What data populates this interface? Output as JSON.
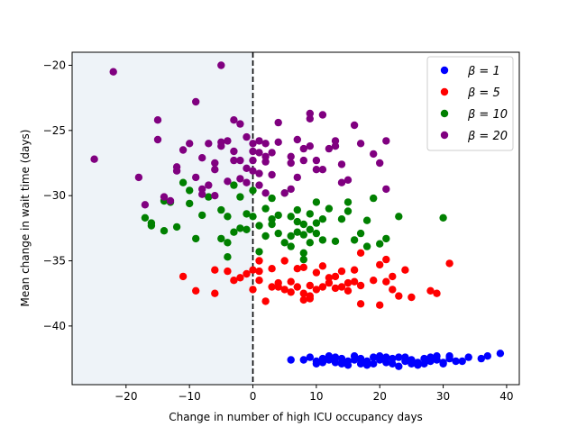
{
  "chart_data": {
    "type": "scatter",
    "xlabel": "Change in number of high ICU occupancy days",
    "ylabel": "Mean change in wait time (days)",
    "xlim": [
      -28.5,
      42.0
    ],
    "ylim": [
      -44.5,
      -19.0
    ],
    "x_ticks": [
      -20,
      -10,
      0,
      10,
      20,
      30,
      40
    ],
    "x_tick_labels": [
      "−20",
      "−10",
      "0",
      "10",
      "20",
      "30",
      "40"
    ],
    "y_ticks": [
      -20,
      -25,
      -30,
      -35,
      -40
    ],
    "y_tick_labels": [
      "−20",
      "−25",
      "−30",
      "−35",
      "−40"
    ],
    "shaded_region": {
      "x_from": -28.5,
      "x_to": 0,
      "color": "#eef3f8"
    },
    "reference_line": {
      "x": 0,
      "style": "dashed",
      "color": "#000000"
    },
    "grid": false,
    "legend_position": "top-right",
    "series": [
      {
        "name": "β = 1",
        "color": "#0000ff",
        "points": [
          [
            6,
            -42.6
          ],
          [
            8,
            -42.6
          ],
          [
            9,
            -42.4
          ],
          [
            10,
            -42.7
          ],
          [
            11,
            -42.5
          ],
          [
            12,
            -42.6
          ],
          [
            13,
            -42.8
          ],
          [
            14,
            -42.5
          ],
          [
            15,
            -42.7
          ],
          [
            16,
            -42.6
          ],
          [
            17,
            -42.5
          ],
          [
            18,
            -42.7
          ],
          [
            19,
            -42.4
          ],
          [
            20,
            -42.6
          ],
          [
            21,
            -42.8
          ],
          [
            22,
            -42.5
          ],
          [
            23,
            -43.1
          ],
          [
            24,
            -42.7
          ],
          [
            25,
            -42.6
          ],
          [
            26,
            -42.8
          ],
          [
            27,
            -42.5
          ],
          [
            28,
            -42.7
          ],
          [
            29,
            -42.6
          ],
          [
            30,
            -42.8
          ],
          [
            31,
            -42.5
          ],
          [
            32,
            -42.7
          ],
          [
            34,
            -42.4
          ],
          [
            36,
            -42.5
          ],
          [
            37,
            -42.3
          ],
          [
            39,
            -42.1
          ],
          [
            10,
            -42.9
          ],
          [
            14,
            -42.9
          ],
          [
            18,
            -43.0
          ],
          [
            22,
            -42.9
          ],
          [
            26,
            -43.0
          ],
          [
            30,
            -42.9
          ],
          [
            12,
            -42.3
          ],
          [
            16,
            -42.3
          ],
          [
            20,
            -42.3
          ],
          [
            24,
            -42.4
          ],
          [
            28,
            -42.4
          ],
          [
            33,
            -42.7
          ],
          [
            15,
            -43.0
          ],
          [
            19,
            -42.9
          ],
          [
            23,
            -42.4
          ],
          [
            27,
            -42.9
          ],
          [
            31,
            -42.3
          ],
          [
            11,
            -42.8
          ],
          [
            13,
            -42.4
          ],
          [
            17,
            -42.9
          ],
          [
            21,
            -42.4
          ],
          [
            25,
            -42.9
          ],
          [
            29,
            -42.3
          ]
        ]
      },
      {
        "name": "β = 5",
        "color": "#ff0000",
        "points": [
          [
            -11,
            -36.2
          ],
          [
            -9,
            -37.3
          ],
          [
            -6,
            -37.5
          ],
          [
            -6,
            -35.7
          ],
          [
            -4,
            -35.8
          ],
          [
            -3,
            -36.5
          ],
          [
            -2,
            -36.3
          ],
          [
            -1,
            -36.0
          ],
          [
            0,
            -35.7
          ],
          [
            0,
            -37.2
          ],
          [
            1,
            -36.5
          ],
          [
            1,
            -35.0
          ],
          [
            1,
            -35.8
          ],
          [
            2,
            -38.1
          ],
          [
            3,
            -37.0
          ],
          [
            3,
            -35.6
          ],
          [
            4,
            -36.7
          ],
          [
            5,
            -37.2
          ],
          [
            5,
            -35.0
          ],
          [
            6,
            -36.6
          ],
          [
            7,
            -37.0
          ],
          [
            7,
            -35.6
          ],
          [
            8,
            -37.5
          ],
          [
            8,
            -35.5
          ],
          [
            9,
            -36.9
          ],
          [
            9,
            -37.7
          ],
          [
            10,
            -37.2
          ],
          [
            10,
            -35.9
          ],
          [
            11,
            -35.4
          ],
          [
            11,
            -37.0
          ],
          [
            12,
            -36.3
          ],
          [
            12,
            -36.7
          ],
          [
            13,
            -37.1
          ],
          [
            13,
            -36.2
          ],
          [
            14,
            -37.0
          ],
          [
            14,
            -35.8
          ],
          [
            15,
            -36.7
          ],
          [
            15,
            -37.3
          ],
          [
            16,
            -36.6
          ],
          [
            16,
            -35.7
          ],
          [
            17,
            -38.3
          ],
          [
            17,
            -34.4
          ],
          [
            17,
            -36.9
          ],
          [
            19,
            -36.5
          ],
          [
            20,
            -38.4
          ],
          [
            20,
            -35.3
          ],
          [
            21,
            -36.6
          ],
          [
            21,
            -34.9
          ],
          [
            22,
            -37.2
          ],
          [
            22,
            -36.2
          ],
          [
            23,
            -37.7
          ],
          [
            24,
            -35.7
          ],
          [
            25,
            -37.8
          ],
          [
            28,
            -37.3
          ],
          [
            29,
            -37.5
          ],
          [
            31,
            -35.2
          ],
          [
            8,
            -38.0
          ],
          [
            9,
            -37.9
          ],
          [
            4,
            -37.0
          ],
          [
            6,
            -37.4
          ]
        ]
      },
      {
        "name": "β = 10",
        "color": "#008000",
        "points": [
          [
            -17,
            -31.7
          ],
          [
            -16,
            -32.3
          ],
          [
            -16,
            -32.1
          ],
          [
            -14,
            -32.7
          ],
          [
            -14,
            -30.4
          ],
          [
            -13,
            -30.5
          ],
          [
            -12,
            -32.4
          ],
          [
            -11,
            -29.0
          ],
          [
            -10,
            -30.6
          ],
          [
            -10,
            -29.6
          ],
          [
            -9,
            -33.3
          ],
          [
            -8,
            -31.5
          ],
          [
            -7,
            -30.1
          ],
          [
            -5,
            -33.3
          ],
          [
            -5,
            -31.1
          ],
          [
            -4,
            -31.6
          ],
          [
            -4,
            -33.6
          ],
          [
            -4,
            -34.7
          ],
          [
            -3,
            -32.8
          ],
          [
            -3,
            -29.2
          ],
          [
            -2,
            -32.5
          ],
          [
            -2,
            -30.1
          ],
          [
            -1,
            -31.4
          ],
          [
            -1,
            -32.6
          ],
          [
            0,
            -31.6
          ],
          [
            0,
            -29.6
          ],
          [
            1,
            -32.3
          ],
          [
            1,
            -34.3
          ],
          [
            2,
            -31.0
          ],
          [
            3,
            -31.8
          ],
          [
            3,
            -32.2
          ],
          [
            3,
            -30.2
          ],
          [
            4,
            -31.5
          ],
          [
            4,
            -32.9
          ],
          [
            5,
            -33.6
          ],
          [
            5,
            -29.8
          ],
          [
            6,
            -33.1
          ],
          [
            6,
            -31.6
          ],
          [
            6,
            -33.9
          ],
          [
            7,
            -32.8
          ],
          [
            7,
            -31.1
          ],
          [
            8,
            -32.2
          ],
          [
            8,
            -33.0
          ],
          [
            8,
            -34.4
          ],
          [
            8,
            -34.9
          ],
          [
            9,
            -32.6
          ],
          [
            9,
            -31.4
          ],
          [
            9,
            -33.6
          ],
          [
            10,
            -32.9
          ],
          [
            10,
            -30.5
          ],
          [
            11,
            -31.8
          ],
          [
            11,
            -33.4
          ],
          [
            12,
            -31.0
          ],
          [
            13,
            -33.5
          ],
          [
            14,
            -31.8
          ],
          [
            15,
            -31.2
          ],
          [
            15,
            -30.5
          ],
          [
            16,
            -33.4
          ],
          [
            17,
            -32.9
          ],
          [
            18,
            -33.9
          ],
          [
            18,
            -31.9
          ],
          [
            19,
            -30.2
          ],
          [
            20,
            -33.7
          ],
          [
            21,
            -33.3
          ],
          [
            23,
            -31.6
          ],
          [
            30,
            -31.7
          ],
          [
            7,
            -32.0
          ],
          [
            10,
            -32.1
          ],
          [
            2,
            -33.1
          ]
        ]
      },
      {
        "name": "β = 20",
        "color": "#800080",
        "points": [
          [
            -25,
            -27.2
          ],
          [
            -22,
            -20.5
          ],
          [
            -18,
            -28.6
          ],
          [
            -17,
            -30.7
          ],
          [
            -15,
            -24.2
          ],
          [
            -15,
            -25.7
          ],
          [
            -14,
            -30.1
          ],
          [
            -13,
            -30.4
          ],
          [
            -12,
            -27.8
          ],
          [
            -12,
            -28.1
          ],
          [
            -11,
            -26.5
          ],
          [
            -10,
            -26.0
          ],
          [
            -9,
            -28.6
          ],
          [
            -9,
            -22.8
          ],
          [
            -8,
            -29.9
          ],
          [
            -8,
            -27.1
          ],
          [
            -7,
            -29.2
          ],
          [
            -7,
            -26.0
          ],
          [
            -6,
            -27.5
          ],
          [
            -6,
            -28.0
          ],
          [
            -5,
            -26.2
          ],
          [
            -5,
            -25.9
          ],
          [
            -5,
            -20.0
          ],
          [
            -4,
            -28.9
          ],
          [
            -4,
            -25.8
          ],
          [
            -3,
            -24.2
          ],
          [
            -3,
            -26.6
          ],
          [
            -3,
            -27.3
          ],
          [
            -2,
            -27.3
          ],
          [
            -2,
            -28.7
          ],
          [
            -2,
            -24.5
          ],
          [
            -1,
            -27.9
          ],
          [
            -1,
            -25.5
          ],
          [
            -1,
            -29.0
          ],
          [
            0,
            -26.6
          ],
          [
            0,
            -26.0
          ],
          [
            0,
            -28.1
          ],
          [
            1,
            -28.3
          ],
          [
            1,
            -26.7
          ],
          [
            1,
            -25.8
          ],
          [
            1,
            -29.2
          ],
          [
            2,
            -26.0
          ],
          [
            2,
            -27.0
          ],
          [
            2,
            -29.8
          ],
          [
            3,
            -28.4
          ],
          [
            4,
            -25.9
          ],
          [
            4,
            -24.4
          ],
          [
            5,
            -29.8
          ],
          [
            6,
            -27.0
          ],
          [
            6,
            -27.5
          ],
          [
            6,
            -29.5
          ],
          [
            7,
            -25.7
          ],
          [
            7,
            -28.6
          ],
          [
            8,
            -26.4
          ],
          [
            9,
            -23.7
          ],
          [
            9,
            -24.1
          ],
          [
            9,
            -26.2
          ],
          [
            10,
            -27.3
          ],
          [
            10,
            -28.0
          ],
          [
            11,
            -28.0
          ],
          [
            11,
            -23.8
          ],
          [
            13,
            -26.2
          ],
          [
            13,
            -25.8
          ],
          [
            14,
            -27.6
          ],
          [
            14,
            -29.0
          ],
          [
            15,
            -28.8
          ],
          [
            16,
            -24.6
          ],
          [
            17,
            -26.0
          ],
          [
            19,
            -26.8
          ],
          [
            20,
            -27.5
          ],
          [
            21,
            -29.5
          ],
          [
            21,
            -25.8
          ],
          [
            -8,
            -29.5
          ],
          [
            -6,
            -30.0
          ],
          [
            0,
            -27.3
          ],
          [
            2,
            -27.4
          ],
          [
            8,
            -27.3
          ],
          [
            12,
            -26.4
          ],
          [
            3,
            -26.7
          ]
        ]
      }
    ]
  }
}
